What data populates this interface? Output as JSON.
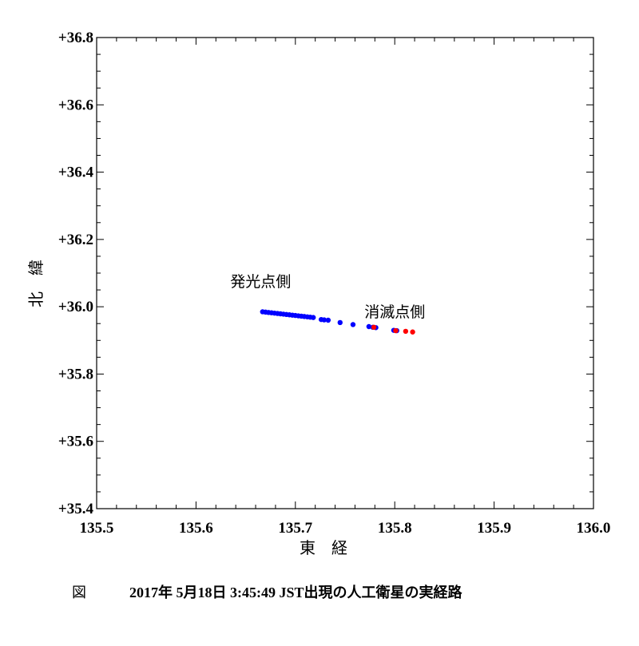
{
  "chart_data": {
    "type": "scatter",
    "xlabel": "東　経",
    "ylabel": "北　緯",
    "xlim": [
      135.5,
      136.0
    ],
    "ylim": [
      35.4,
      36.8
    ],
    "x_ticks": [
      "135.5",
      "135.6",
      "135.7",
      "135.8",
      "135.9",
      "136.0"
    ],
    "y_ticks": [
      "+35.4",
      "+35.6",
      "+35.8",
      "+36.0",
      "+36.2",
      "+36.4",
      "+36.6",
      "+36.8"
    ],
    "grid": false,
    "annotations": [
      {
        "text": "発光点側",
        "x": 135.665,
        "y": 36.06
      },
      {
        "text": "消滅点側",
        "x": 135.8,
        "y": 35.97
      }
    ],
    "series": [
      {
        "color": "#0000ff",
        "points": [
          [
            135.667,
            35.985
          ],
          [
            135.67,
            35.984
          ],
          [
            135.673,
            35.983
          ],
          [
            135.676,
            35.982
          ],
          [
            135.679,
            35.981
          ],
          [
            135.682,
            35.98
          ],
          [
            135.685,
            35.979
          ],
          [
            135.688,
            35.978
          ],
          [
            135.691,
            35.977
          ],
          [
            135.694,
            35.976
          ],
          [
            135.697,
            35.975
          ],
          [
            135.7,
            35.974
          ],
          [
            135.703,
            35.973
          ],
          [
            135.706,
            35.972
          ],
          [
            135.709,
            35.971
          ],
          [
            135.712,
            35.97
          ],
          [
            135.715,
            35.969
          ],
          [
            135.718,
            35.968
          ],
          [
            135.726,
            35.962
          ],
          [
            135.729,
            35.961
          ],
          [
            135.733,
            35.96
          ],
          [
            135.745,
            35.953
          ],
          [
            135.758,
            35.947
          ],
          [
            135.774,
            35.941
          ],
          [
            135.778,
            35.939
          ],
          [
            135.781,
            35.938
          ],
          [
            135.799,
            35.93
          ],
          [
            135.802,
            35.929
          ]
        ]
      },
      {
        "color": "#ff0000",
        "points": [
          [
            135.779,
            35.939
          ],
          [
            135.801,
            35.929
          ],
          [
            135.811,
            35.927
          ],
          [
            135.818,
            35.925
          ]
        ]
      }
    ]
  },
  "caption": {
    "figure_label": "図",
    "text": "2017年 5月18日 3:45:49 JST出現の人工衛星の実経路"
  }
}
